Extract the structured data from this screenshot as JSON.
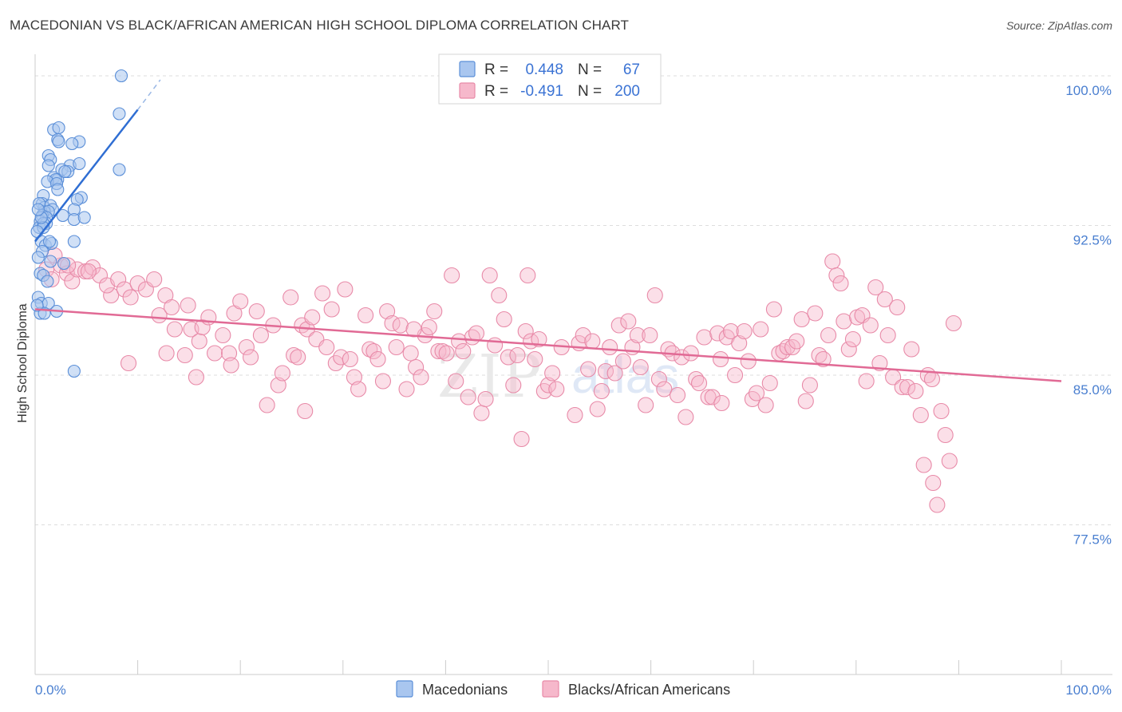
{
  "title": "MACEDONIAN VS BLACK/AFRICAN AMERICAN HIGH SCHOOL DIPLOMA CORRELATION CHART",
  "source": "Source: ZipAtlas.com",
  "watermark": {
    "part1": "ZIP",
    "part2": "atlas"
  },
  "colors": {
    "blue_fill": "#a9c6ef",
    "blue_stroke": "#5b8fd8",
    "blue_line": "#2f6ed3",
    "pink_fill": "#f6b8cb",
    "pink_stroke": "#e88aa8",
    "pink_line": "#e16a95",
    "axis_label": "#4a7fd0",
    "grid": "#dddddd"
  },
  "legend": {
    "rows": [
      {
        "r_label": "R =",
        "r_value": "0.448",
        "n_label": "N =",
        "n_value": "67"
      },
      {
        "r_label": "R =",
        "r_value": "-0.491",
        "n_label": "N =",
        "n_value": "200"
      }
    ]
  },
  "bottom_legend": [
    "Macedonians",
    "Blacks/African Americans"
  ],
  "chart_data": {
    "type": "scatter",
    "title": "MACEDONIAN VS BLACK/AFRICAN AMERICAN HIGH SCHOOL DIPLOMA CORRELATION CHART",
    "xlabel": "",
    "ylabel": "High School Diploma",
    "xlim": [
      0,
      100
    ],
    "ylim": [
      70.0,
      100.6
    ],
    "x_tick_labels": [
      "0.0%",
      "100.0%"
    ],
    "y_ticks": [
      100.0,
      92.5,
      85.0,
      77.5
    ],
    "y_tick_labels": [
      "100.0%",
      "92.5%",
      "85.0%",
      "77.5%"
    ],
    "grid": true,
    "legend_position": "top-center",
    "series": [
      {
        "name": "Macedonians",
        "R": 0.448,
        "N": 67,
        "trend": {
          "x": [
            0.0,
            10.0
          ],
          "y": [
            91.7,
            98.3
          ]
        },
        "trend_dashed": {
          "x": [
            10.0,
            12.2
          ],
          "y": [
            98.3,
            99.8
          ]
        },
        "points": [
          [
            8.4,
            100.0
          ],
          [
            8.2,
            98.1
          ],
          [
            1.8,
            97.3
          ],
          [
            2.3,
            97.4
          ],
          [
            2.2,
            96.8
          ],
          [
            2.3,
            96.7
          ],
          [
            4.3,
            96.7
          ],
          [
            3.6,
            96.6
          ],
          [
            1.3,
            96.0
          ],
          [
            1.5,
            95.8
          ],
          [
            3.4,
            95.5
          ],
          [
            4.3,
            95.6
          ],
          [
            8.2,
            95.3
          ],
          [
            2.6,
            95.3
          ],
          [
            3.2,
            95.2
          ],
          [
            1.3,
            95.5
          ],
          [
            1.8,
            94.9
          ],
          [
            2.2,
            94.8
          ],
          [
            2.0,
            94.8
          ],
          [
            1.2,
            94.7
          ],
          [
            2.1,
            94.6
          ],
          [
            2.2,
            94.3
          ],
          [
            0.8,
            94.0
          ],
          [
            4.5,
            93.9
          ],
          [
            4.1,
            93.8
          ],
          [
            0.7,
            93.6
          ],
          [
            0.9,
            93.4
          ],
          [
            1.5,
            93.5
          ],
          [
            1.7,
            93.3
          ],
          [
            0.9,
            93.2
          ],
          [
            1.3,
            93.2
          ],
          [
            3.8,
            93.3
          ],
          [
            0.7,
            93.0
          ],
          [
            1.1,
            92.9
          ],
          [
            2.7,
            93.0
          ],
          [
            0.5,
            92.7
          ],
          [
            1.1,
            92.6
          ],
          [
            3.8,
            92.8
          ],
          [
            4.8,
            92.9
          ],
          [
            0.4,
            92.4
          ],
          [
            0.8,
            92.6
          ],
          [
            0.8,
            92.4
          ],
          [
            0.6,
            91.7
          ],
          [
            1.0,
            91.5
          ],
          [
            3.8,
            91.7
          ],
          [
            1.6,
            91.6
          ],
          [
            0.7,
            91.2
          ],
          [
            0.3,
            90.9
          ],
          [
            1.5,
            90.7
          ],
          [
            2.8,
            90.6
          ],
          [
            0.5,
            90.1
          ],
          [
            0.8,
            90.0
          ],
          [
            1.2,
            89.7
          ],
          [
            0.3,
            88.9
          ],
          [
            0.6,
            88.6
          ],
          [
            1.3,
            88.6
          ],
          [
            0.5,
            88.1
          ],
          [
            0.9,
            88.1
          ],
          [
            2.1,
            88.2
          ],
          [
            0.2,
            88.5
          ],
          [
            3.8,
            85.2
          ],
          [
            0.2,
            92.2
          ],
          [
            0.4,
            93.6
          ],
          [
            0.6,
            92.9
          ],
          [
            1.4,
            91.7
          ],
          [
            0.3,
            93.3
          ],
          [
            2.9,
            95.2
          ]
        ]
      },
      {
        "name": "Blacks/African Americans",
        "R": -0.491,
        "N": 200,
        "trend": {
          "x": [
            0.0,
            100.0
          ],
          "y": [
            88.3,
            84.7
          ]
        },
        "points": [
          [
            1.1,
            90.3
          ],
          [
            1.6,
            89.8
          ],
          [
            2.5,
            90.5
          ],
          [
            3.1,
            90.1
          ],
          [
            3.6,
            89.7
          ],
          [
            4.1,
            90.3
          ],
          [
            4.9,
            90.2
          ],
          [
            5.6,
            90.4
          ],
          [
            6.3,
            90.0
          ],
          [
            7.4,
            89.0
          ],
          [
            7.0,
            89.5
          ],
          [
            8.1,
            89.8
          ],
          [
            8.7,
            89.3
          ],
          [
            9.3,
            88.9
          ],
          [
            10.0,
            89.6
          ],
          [
            10.8,
            89.3
          ],
          [
            11.6,
            89.8
          ],
          [
            12.1,
            88.0
          ],
          [
            12.8,
            86.1
          ],
          [
            12.7,
            89.0
          ],
          [
            13.3,
            88.4
          ],
          [
            13.6,
            87.3
          ],
          [
            14.6,
            86.0
          ],
          [
            14.9,
            88.5
          ],
          [
            15.2,
            87.3
          ],
          [
            16.0,
            86.7
          ],
          [
            16.3,
            87.4
          ],
          [
            16.9,
            87.9
          ],
          [
            17.5,
            86.1
          ],
          [
            18.3,
            87.0
          ],
          [
            18.9,
            86.1
          ],
          [
            19.1,
            85.5
          ],
          [
            19.4,
            88.1
          ],
          [
            20.0,
            88.7
          ],
          [
            20.6,
            86.4
          ],
          [
            21.0,
            85.9
          ],
          [
            21.6,
            88.2
          ],
          [
            22.0,
            87.0
          ],
          [
            22.6,
            83.5
          ],
          [
            23.2,
            87.5
          ],
          [
            23.7,
            84.5
          ],
          [
            24.1,
            85.1
          ],
          [
            24.9,
            88.9
          ],
          [
            25.2,
            86.0
          ],
          [
            25.6,
            85.9
          ],
          [
            26.0,
            87.5
          ],
          [
            26.5,
            87.3
          ],
          [
            27.0,
            87.9
          ],
          [
            27.4,
            86.8
          ],
          [
            28.0,
            89.1
          ],
          [
            28.4,
            86.4
          ],
          [
            28.9,
            88.3
          ],
          [
            29.3,
            85.6
          ],
          [
            29.8,
            85.9
          ],
          [
            30.2,
            89.3
          ],
          [
            30.7,
            85.8
          ],
          [
            31.1,
            84.9
          ],
          [
            31.5,
            84.3
          ],
          [
            32.2,
            88.0
          ],
          [
            32.6,
            86.3
          ],
          [
            33.0,
            86.2
          ],
          [
            33.4,
            85.8
          ],
          [
            33.9,
            84.7
          ],
          [
            34.3,
            88.2
          ],
          [
            34.8,
            87.6
          ],
          [
            35.2,
            86.4
          ],
          [
            35.6,
            87.5
          ],
          [
            36.2,
            84.3
          ],
          [
            36.6,
            86.1
          ],
          [
            37.1,
            85.4
          ],
          [
            37.6,
            84.9
          ],
          [
            38.0,
            87.0
          ],
          [
            38.4,
            87.4
          ],
          [
            38.9,
            88.2
          ],
          [
            39.3,
            86.2
          ],
          [
            39.7,
            86.2
          ],
          [
            40.1,
            86.1
          ],
          [
            40.6,
            90.0
          ],
          [
            41.0,
            84.7
          ],
          [
            41.3,
            86.7
          ],
          [
            41.7,
            86.2
          ],
          [
            42.2,
            83.9
          ],
          [
            42.6,
            86.9
          ],
          [
            43.0,
            87.1
          ],
          [
            43.5,
            83.1
          ],
          [
            43.9,
            83.8
          ],
          [
            44.3,
            90.0
          ],
          [
            44.8,
            86.5
          ],
          [
            45.2,
            89.0
          ],
          [
            45.7,
            87.8
          ],
          [
            46.1,
            85.9
          ],
          [
            46.6,
            84.5
          ],
          [
            47.0,
            86.0
          ],
          [
            47.4,
            81.8
          ],
          [
            47.8,
            87.2
          ],
          [
            48.3,
            86.7
          ],
          [
            48.7,
            85.8
          ],
          [
            49.1,
            86.8
          ],
          [
            49.6,
            84.2
          ],
          [
            50.0,
            84.5
          ],
          [
            50.4,
            85.1
          ],
          [
            50.8,
            84.3
          ],
          [
            51.3,
            86.4
          ],
          [
            52.6,
            83.0
          ],
          [
            53.0,
            86.6
          ],
          [
            53.4,
            87.0
          ],
          [
            53.9,
            85.3
          ],
          [
            54.3,
            86.7
          ],
          [
            54.8,
            83.3
          ],
          [
            55.2,
            84.2
          ],
          [
            55.6,
            85.2
          ],
          [
            56.0,
            86.4
          ],
          [
            56.5,
            85.1
          ],
          [
            56.9,
            87.5
          ],
          [
            57.3,
            85.7
          ],
          [
            57.8,
            87.7
          ],
          [
            58.2,
            86.4
          ],
          [
            58.7,
            87.0
          ],
          [
            59.0,
            85.4
          ],
          [
            59.5,
            83.5
          ],
          [
            59.9,
            87.0
          ],
          [
            60.4,
            89.0
          ],
          [
            60.8,
            84.8
          ],
          [
            61.3,
            84.3
          ],
          [
            61.7,
            86.3
          ],
          [
            62.1,
            86.1
          ],
          [
            62.6,
            84.0
          ],
          [
            63.0,
            85.9
          ],
          [
            63.4,
            82.9
          ],
          [
            63.9,
            86.1
          ],
          [
            64.4,
            84.8
          ],
          [
            64.7,
            84.6
          ],
          [
            65.2,
            86.9
          ],
          [
            65.6,
            83.9
          ],
          [
            66.0,
            83.9
          ],
          [
            66.5,
            87.1
          ],
          [
            66.9,
            83.6
          ],
          [
            67.4,
            86.9
          ],
          [
            67.8,
            87.2
          ],
          [
            68.2,
            85.0
          ],
          [
            68.6,
            86.6
          ],
          [
            69.1,
            87.2
          ],
          [
            69.5,
            85.7
          ],
          [
            69.9,
            83.8
          ],
          [
            70.3,
            84.1
          ],
          [
            70.7,
            87.3
          ],
          [
            71.2,
            83.5
          ],
          [
            71.6,
            84.6
          ],
          [
            72.0,
            88.3
          ],
          [
            72.5,
            86.1
          ],
          [
            72.9,
            86.2
          ],
          [
            73.3,
            86.4
          ],
          [
            73.8,
            86.4
          ],
          [
            74.2,
            86.7
          ],
          [
            74.7,
            87.8
          ],
          [
            75.1,
            83.7
          ],
          [
            75.5,
            84.5
          ],
          [
            76.0,
            88.1
          ],
          [
            76.4,
            86.0
          ],
          [
            76.8,
            85.8
          ],
          [
            77.3,
            87.0
          ],
          [
            77.7,
            90.7
          ],
          [
            78.1,
            90.0
          ],
          [
            78.5,
            89.6
          ],
          [
            78.8,
            87.7
          ],
          [
            79.3,
            86.3
          ],
          [
            79.7,
            86.8
          ],
          [
            80.1,
            87.9
          ],
          [
            80.6,
            88.0
          ],
          [
            81.0,
            84.7
          ],
          [
            81.4,
            87.5
          ],
          [
            81.9,
            89.4
          ],
          [
            82.3,
            85.6
          ],
          [
            82.8,
            88.8
          ],
          [
            83.1,
            87.0
          ],
          [
            83.6,
            84.9
          ],
          [
            84.0,
            88.4
          ],
          [
            84.5,
            84.4
          ],
          [
            85.0,
            84.4
          ],
          [
            85.4,
            86.3
          ],
          [
            85.8,
            84.2
          ],
          [
            86.3,
            83.0
          ],
          [
            86.6,
            80.5
          ],
          [
            87.0,
            85.0
          ],
          [
            87.5,
            79.6
          ],
          [
            87.9,
            78.5
          ],
          [
            88.3,
            83.2
          ],
          [
            88.7,
            82.0
          ],
          [
            89.1,
            80.7
          ],
          [
            89.5,
            87.6
          ],
          [
            87.4,
            84.8
          ],
          [
            66.8,
            85.8
          ],
          [
            3.2,
            90.5
          ],
          [
            1.9,
            91.0
          ],
          [
            5.2,
            90.2
          ],
          [
            9.1,
            85.6
          ],
          [
            15.7,
            84.9
          ],
          [
            26.3,
            83.2
          ],
          [
            36.9,
            87.3
          ],
          [
            48.0,
            90.0
          ]
        ]
      }
    ]
  }
}
